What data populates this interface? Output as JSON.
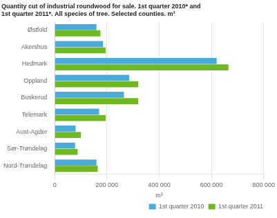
{
  "chart_data": {
    "type": "bar",
    "orientation": "horizontal",
    "title": "Quantity cut of industrial roundwood for sale. 1st quarter 2010* and",
    "subtitle": "1st quarter 2011*. All species of tree. Selected counties. m³",
    "categories": [
      "Østfold",
      "Akershus",
      "Hedmark",
      "Oppland",
      "Buskerud",
      "Telemark",
      "Aust-Agder",
      "Sør-Trøndelag",
      "Nord-Trøndelag"
    ],
    "series": [
      {
        "name": "1st quarter 2010",
        "color": "#4aabdb",
        "values": [
          160000,
          185000,
          620000,
          285000,
          265000,
          170000,
          80000,
          78000,
          160000
        ]
      },
      {
        "name": "1st quarter 2011",
        "color": "#6eb820",
        "values": [
          175000,
          195000,
          665000,
          320000,
          320000,
          195000,
          100000,
          88000,
          165000
        ]
      }
    ],
    "xlabel": "m³",
    "xlim": [
      0,
      800000
    ],
    "xticks": [
      0,
      {
        "value": 200000,
        "label": "200 000"
      },
      {
        "value": 400000,
        "label": "400 000"
      },
      {
        "value": 600000,
        "label": "600 000"
      },
      {
        "value": 800000,
        "label": "800 000"
      }
    ],
    "grid": true,
    "legend": "lower right"
  }
}
